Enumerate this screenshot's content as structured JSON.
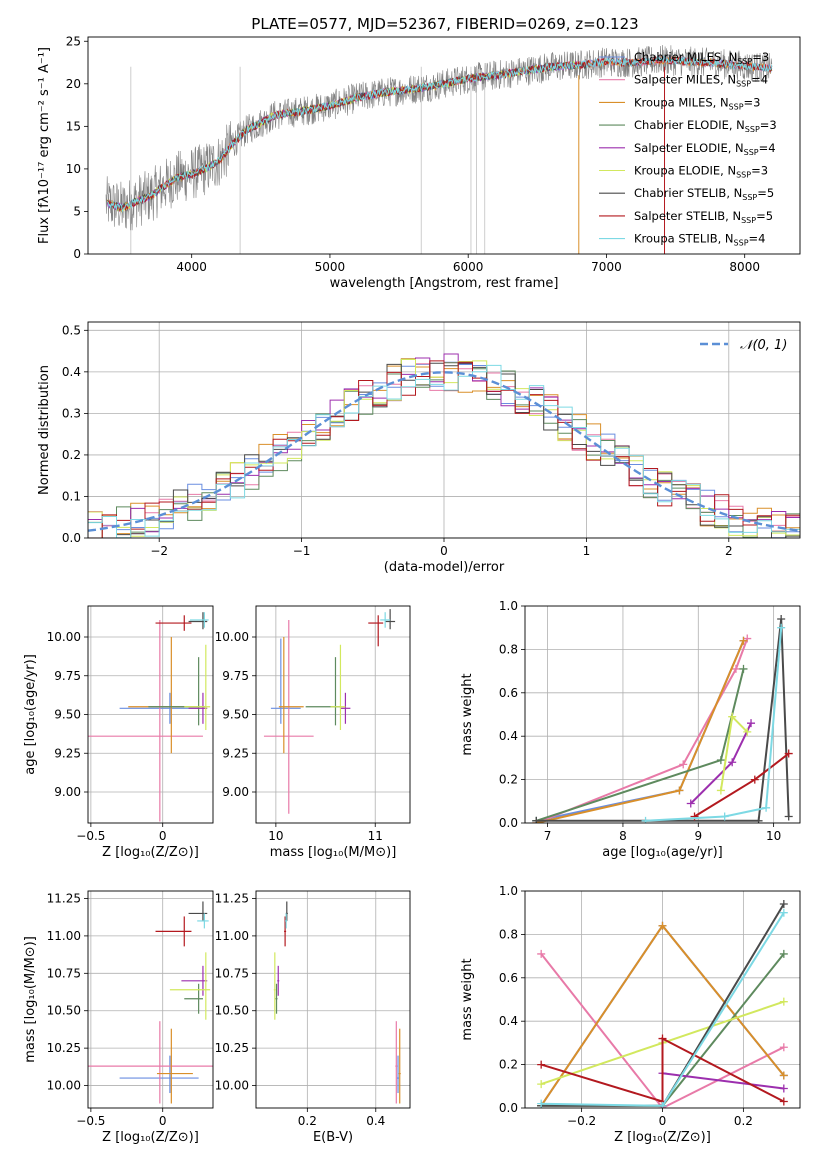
{
  "figure": {
    "title": "PLATE=0577, MJD=52367, FIBERID=0269, z=0.123"
  },
  "colors": {
    "Chabrier MILES": "#6a8ee0",
    "Salpeter MILES": "#e87aa8",
    "Kroupa MILES": "#d98f2a",
    "Chabrier ELODIE": "#5e8a5e",
    "Salpeter ELODIE": "#9c2fae",
    "Kroupa ELODIE": "#d2e85e",
    "Chabrier STELIB": "#4a4a4a",
    "Salpeter STELIB": "#b3191f",
    "Kroupa STELIB": "#7dd9e4",
    "data": "#808080",
    "normal": "#5b8fd6"
  },
  "legend_spectrum": [
    {
      "label": "Chabrier MILES, N",
      "sub": "SSP",
      "suffix": "=3",
      "key": "Chabrier MILES"
    },
    {
      "label": "Salpeter MILES, N",
      "sub": "SSP",
      "suffix": "=4",
      "key": "Salpeter MILES"
    },
    {
      "label": "Kroupa MILES, N",
      "sub": "SSP",
      "suffix": "=3",
      "key": "Kroupa MILES"
    },
    {
      "label": "Chabrier ELODIE, N",
      "sub": "SSP",
      "suffix": "=3",
      "key": "Chabrier ELODIE"
    },
    {
      "label": "Salpeter ELODIE, N",
      "sub": "SSP",
      "suffix": "=4",
      "key": "Salpeter ELODIE"
    },
    {
      "label": "Kroupa ELODIE, N",
      "sub": "SSP",
      "suffix": "=3",
      "key": "Kroupa ELODIE"
    },
    {
      "label": "Chabrier STELIB, N",
      "sub": "SSP",
      "suffix": "=5",
      "key": "Chabrier STELIB"
    },
    {
      "label": "Salpeter STELIB, N",
      "sub": "SSP",
      "suffix": "=5",
      "key": "Salpeter STELIB"
    },
    {
      "label": "Kroupa STELIB, N",
      "sub": "SSP",
      "suffix": "=4",
      "key": "Kroupa STELIB"
    }
  ],
  "chart_data": [
    {
      "id": "spectrum",
      "type": "line",
      "xlabel": "wavelength [Angstrom, rest frame]",
      "ylabel": "Flux [fλ10⁻¹⁷ erg cm⁻² s⁻¹ A⁻¹]",
      "xlim": [
        3250,
        8400
      ],
      "ylim": [
        0,
        25.5
      ],
      "xticks": [
        4000,
        5000,
        6000,
        7000,
        8000
      ],
      "yticks": [
        0,
        5,
        10,
        15,
        20,
        25
      ],
      "continuum": {
        "x": [
          3380,
          3500,
          3600,
          3700,
          3800,
          3900,
          4000,
          4100,
          4200,
          4300,
          4400,
          4500,
          4600,
          4800,
          5000,
          5200,
          5400,
          5600,
          5800,
          6000,
          6200,
          6400,
          6600,
          6800,
          7000,
          7200,
          7400,
          7600,
          7800,
          8000,
          8200
        ],
        "y": [
          6.0,
          5.4,
          6.2,
          6.8,
          8.0,
          9.0,
          9.4,
          10.0,
          11.0,
          13.0,
          14.6,
          15.4,
          16.3,
          16.8,
          17.4,
          18.4,
          19.0,
          19.4,
          19.9,
          20.6,
          21.0,
          21.5,
          22.0,
          22.2,
          22.6,
          22.5,
          22.8,
          22.6,
          22.4,
          22.1,
          21.8
        ]
      },
      "legend_position": "upper right"
    },
    {
      "id": "residuals",
      "type": "line",
      "xlabel": "(data-model)/error",
      "ylabel": "Normed distribution",
      "xlim": [
        -2.5,
        2.5
      ],
      "ylim": [
        0,
        0.52
      ],
      "xticks": [
        -2,
        -1,
        0,
        1,
        2
      ],
      "yticks": [
        0.0,
        0.1,
        0.2,
        0.3,
        0.4,
        0.5
      ],
      "normal_label": "𝒩(0, 1)",
      "legend_position": "upper right",
      "grid": true
    },
    {
      "id": "age_vs_Z",
      "type": "scatter",
      "xlabel": "Z [log₁₀(Z/Z⊙)]",
      "ylabel": "age  [log₁₀(age/yr)]",
      "xlim": [
        -0.52,
        0.35
      ],
      "ylim": [
        8.8,
        10.2
      ],
      "xticks": [
        -0.5,
        0.0
      ],
      "yticks": [
        9.0,
        9.25,
        9.5,
        9.75,
        10.0
      ],
      "points": [
        {
          "model": "Chabrier MILES",
          "x": 0.05,
          "y": 9.54,
          "xerr": [
            0.35,
            0.2
          ],
          "yerr": [
            0.1,
            0.1
          ]
        },
        {
          "model": "Salpeter MILES",
          "x": -0.02,
          "y": 9.36,
          "xerr": [
            0.5,
            0.3
          ],
          "yerr": [
            0.55,
            0.75
          ]
        },
        {
          "model": "Kroupa MILES",
          "x": 0.06,
          "y": 9.55,
          "xerr": [
            0.3,
            0.2
          ],
          "yerr": [
            0.3,
            0.45
          ]
        },
        {
          "model": "Chabrier ELODIE",
          "x": 0.25,
          "y": 9.55,
          "xerr": [
            0.35,
            0.05
          ],
          "yerr": [
            0.12,
            0.32
          ]
        },
        {
          "model": "Salpeter ELODIE",
          "x": 0.28,
          "y": 9.54,
          "xerr": [
            0.1,
            0.03
          ],
          "yerr": [
            0.1,
            0.1
          ]
        },
        {
          "model": "Kroupa ELODIE",
          "x": 0.3,
          "y": 9.55,
          "xerr": [
            0.15,
            0.03
          ],
          "yerr": [
            0.15,
            0.4
          ]
        },
        {
          "model": "Chabrier STELIB",
          "x": 0.28,
          "y": 10.1,
          "xerr": [
            0.1,
            0.03
          ],
          "yerr": [
            0.05,
            0.06
          ]
        },
        {
          "model": "Salpeter STELIB",
          "x": 0.15,
          "y": 10.09,
          "xerr": [
            0.2,
            0.05
          ],
          "yerr": [
            0.05,
            0.05
          ]
        },
        {
          "model": "Kroupa STELIB",
          "x": 0.29,
          "y": 10.11,
          "xerr": [
            0.1,
            0.03
          ],
          "yerr": [
            0.05,
            0.05
          ]
        }
      ]
    },
    {
      "id": "age_vs_mass",
      "type": "scatter",
      "xlabel": "mass [log₁₀(M/M⊙)]",
      "ylabel": "",
      "xlim": [
        9.8,
        11.35
      ],
      "ylim": [
        8.8,
        10.2
      ],
      "xticks": [
        10,
        11
      ],
      "yticks": [
        9.0,
        9.25,
        9.5,
        9.75,
        10.0
      ],
      "points": [
        {
          "model": "Chabrier MILES",
          "x": 10.05,
          "y": 9.54,
          "xerr": [
            0.1,
            0.2
          ],
          "yerr": [
            0.1,
            0.45
          ]
        },
        {
          "model": "Salpeter MILES",
          "x": 10.13,
          "y": 9.36,
          "xerr": [
            0.25,
            0.25
          ],
          "yerr": [
            0.5,
            0.75
          ]
        },
        {
          "model": "Kroupa MILES",
          "x": 10.08,
          "y": 9.55,
          "xerr": [
            0.05,
            0.2
          ],
          "yerr": [
            0.3,
            0.45
          ]
        },
        {
          "model": "Chabrier ELODIE",
          "x": 10.6,
          "y": 9.55,
          "xerr": [
            0.3,
            0.05
          ],
          "yerr": [
            0.12,
            0.32
          ]
        },
        {
          "model": "Salpeter ELODIE",
          "x": 10.7,
          "y": 9.54,
          "xerr": [
            0.05,
            0.05
          ],
          "yerr": [
            0.1,
            0.1
          ]
        },
        {
          "model": "Kroupa ELODIE",
          "x": 10.65,
          "y": 9.55,
          "xerr": [
            0.1,
            0.05
          ],
          "yerr": [
            0.15,
            0.4
          ]
        },
        {
          "model": "Chabrier STELIB",
          "x": 11.15,
          "y": 10.1,
          "xerr": [
            0.05,
            0.05
          ],
          "yerr": [
            0.05,
            0.08
          ]
        },
        {
          "model": "Salpeter STELIB",
          "x": 11.03,
          "y": 10.09,
          "xerr": [
            0.1,
            0.05
          ],
          "yerr": [
            0.15,
            0.05
          ]
        },
        {
          "model": "Kroupa STELIB",
          "x": 11.1,
          "y": 10.11,
          "xerr": [
            0.05,
            0.05
          ],
          "yerr": [
            0.05,
            0.05
          ]
        }
      ]
    },
    {
      "id": "mass_weight_vs_age",
      "type": "line",
      "xlabel": "age  [log₁₀(age/yr)]",
      "ylabel": "mass weight",
      "xlim": [
        6.7,
        10.35
      ],
      "ylim": [
        0,
        1.0
      ],
      "xticks": [
        7,
        8,
        9,
        10
      ],
      "yticks": [
        0.0,
        0.2,
        0.4,
        0.6,
        0.8,
        1.0
      ],
      "grid": true,
      "series": [
        {
          "model": "Chabrier MILES",
          "x": [
            6.85,
            8.75,
            9.6
          ],
          "y": [
            0.01,
            0.15,
            0.84
          ]
        },
        {
          "model": "Salpeter MILES",
          "x": [
            6.85,
            8.8,
            9.5,
            9.65
          ],
          "y": [
            0.0,
            0.27,
            0.71,
            0.85
          ]
        },
        {
          "model": "Kroupa MILES",
          "x": [
            6.85,
            8.75,
            9.6
          ],
          "y": [
            0.0,
            0.15,
            0.84
          ]
        },
        {
          "model": "Chabrier ELODIE",
          "x": [
            6.85,
            9.3,
            9.6
          ],
          "y": [
            0.01,
            0.29,
            0.71
          ]
        },
        {
          "model": "Salpeter ELODIE",
          "x": [
            8.9,
            9.45,
            9.7
          ],
          "y": [
            0.09,
            0.28,
            0.46
          ]
        },
        {
          "model": "Kroupa ELODIE",
          "x": [
            9.3,
            9.45,
            9.65
          ],
          "y": [
            0.15,
            0.49,
            0.42
          ]
        },
        {
          "model": "Chabrier STELIB",
          "x": [
            6.85,
            9.8,
            10.1,
            10.2
          ],
          "y": [
            0.01,
            0.01,
            0.94,
            0.03
          ]
        },
        {
          "model": "Salpeter STELIB",
          "x": [
            8.95,
            9.75,
            10.2
          ],
          "y": [
            0.03,
            0.2,
            0.32
          ]
        },
        {
          "model": "Kroupa STELIB",
          "x": [
            8.3,
            9.35,
            9.9,
            10.1
          ],
          "y": [
            0.01,
            0.03,
            0.07,
            0.9
          ]
        }
      ]
    },
    {
      "id": "mass_vs_Z",
      "type": "scatter",
      "xlabel": "Z [log₁₀(Z/Z⊙)]",
      "ylabel": "mass [log₁₀(M/M⊙)]",
      "xlim": [
        -0.52,
        0.35
      ],
      "ylim": [
        9.85,
        11.3
      ],
      "xticks": [
        -0.5,
        0.0
      ],
      "yticks": [
        10.0,
        10.25,
        10.5,
        10.75,
        11.0,
        11.25
      ],
      "points": [
        {
          "model": "Chabrier MILES",
          "x": 0.05,
          "y": 10.05,
          "xerr": [
            0.35,
            0.2
          ],
          "yerr": [
            0.1,
            0.15
          ]
        },
        {
          "model": "Salpeter MILES",
          "x": -0.02,
          "y": 10.13,
          "xerr": [
            0.5,
            0.37
          ],
          "yerr": [
            0.25,
            0.3
          ]
        },
        {
          "model": "Kroupa MILES",
          "x": 0.06,
          "y": 10.08,
          "xerr": [
            0.1,
            0.15
          ],
          "yerr": [
            0.2,
            0.3
          ]
        },
        {
          "model": "Chabrier ELODIE",
          "x": 0.25,
          "y": 10.58,
          "xerr": [
            0.1,
            0.03
          ],
          "yerr": [
            0.1,
            0.1
          ]
        },
        {
          "model": "Salpeter ELODIE",
          "x": 0.28,
          "y": 10.7,
          "xerr": [
            0.15,
            0.03
          ],
          "yerr": [
            0.1,
            0.1
          ]
        },
        {
          "model": "Kroupa ELODIE",
          "x": 0.3,
          "y": 10.64,
          "xerr": [
            0.25,
            0.03
          ],
          "yerr": [
            0.2,
            0.25
          ]
        },
        {
          "model": "Chabrier STELIB",
          "x": 0.28,
          "y": 11.15,
          "xerr": [
            0.1,
            0.03
          ],
          "yerr": [
            0.05,
            0.08
          ]
        },
        {
          "model": "Salpeter STELIB",
          "x": 0.15,
          "y": 11.03,
          "xerr": [
            0.2,
            0.05
          ],
          "yerr": [
            0.1,
            0.1
          ]
        },
        {
          "model": "Kroupa STELIB",
          "x": 0.29,
          "y": 11.1,
          "xerr": [
            0.05,
            0.03
          ],
          "yerr": [
            0.05,
            0.05
          ]
        }
      ]
    },
    {
      "id": "mass_vs_EBV",
      "type": "scatter",
      "xlabel": "E(B-V)",
      "ylabel": "",
      "xlim": [
        0.05,
        0.5
      ],
      "ylim": [
        9.85,
        11.3
      ],
      "xticks": [
        0.2,
        0.4
      ],
      "yticks": [
        10.0,
        10.25,
        10.5,
        10.75,
        11.0,
        11.25
      ],
      "points": [
        {
          "model": "Chabrier MILES",
          "x": 0.465,
          "y": 10.05,
          "xerr": [
            0.003,
            0.003
          ],
          "yerr": [
            0.1,
            0.15
          ]
        },
        {
          "model": "Salpeter MILES",
          "x": 0.46,
          "y": 10.13,
          "xerr": [
            0.003,
            0.003
          ],
          "yerr": [
            0.25,
            0.3
          ]
        },
        {
          "model": "Kroupa MILES",
          "x": 0.47,
          "y": 10.08,
          "xerr": [
            0.003,
            0.003
          ],
          "yerr": [
            0.2,
            0.3
          ]
        },
        {
          "model": "Chabrier ELODIE",
          "x": 0.11,
          "y": 10.58,
          "xerr": [
            0.003,
            0.003
          ],
          "yerr": [
            0.1,
            0.1
          ]
        },
        {
          "model": "Salpeter ELODIE",
          "x": 0.115,
          "y": 10.7,
          "xerr": [
            0.003,
            0.003
          ],
          "yerr": [
            0.1,
            0.1
          ]
        },
        {
          "model": "Kroupa ELODIE",
          "x": 0.105,
          "y": 10.64,
          "xerr": [
            0.003,
            0.003
          ],
          "yerr": [
            0.2,
            0.25
          ]
        },
        {
          "model": "Chabrier STELIB",
          "x": 0.14,
          "y": 11.15,
          "xerr": [
            0.003,
            0.003
          ],
          "yerr": [
            0.05,
            0.08
          ]
        },
        {
          "model": "Salpeter STELIB",
          "x": 0.135,
          "y": 11.03,
          "xerr": [
            0.003,
            0.003
          ],
          "yerr": [
            0.1,
            0.1
          ]
        },
        {
          "model": "Kroupa STELIB",
          "x": 0.138,
          "y": 11.1,
          "xerr": [
            0.003,
            0.003
          ],
          "yerr": [
            0.05,
            0.05
          ]
        }
      ]
    },
    {
      "id": "mass_weight_vs_Z",
      "type": "line",
      "xlabel": "Z [log₁₀(Z/Z⊙)]",
      "ylabel": "mass weight",
      "xlim": [
        -0.34,
        0.34
      ],
      "ylim": [
        0,
        1.0
      ],
      "xticks": [
        -0.2,
        0.0,
        0.2
      ],
      "yticks": [
        0.0,
        0.2,
        0.4,
        0.6,
        0.8,
        1.0
      ],
      "grid": true,
      "series": [
        {
          "model": "Chabrier MILES",
          "x": [
            -0.3,
            0.0,
            0.3
          ],
          "y": [
            0.01,
            0.84,
            0.15
          ]
        },
        {
          "model": "Salpeter MILES",
          "x": [
            -0.3,
            0.0,
            0.3
          ],
          "y": [
            0.71,
            0.0,
            0.28
          ]
        },
        {
          "model": "Kroupa MILES",
          "x": [
            -0.3,
            0.0,
            0.3
          ],
          "y": [
            0.01,
            0.84,
            0.15
          ]
        },
        {
          "model": "Chabrier ELODIE",
          "x": [
            -0.3,
            0.0,
            0.3
          ],
          "y": [
            0.01,
            0.01,
            0.71
          ]
        },
        {
          "model": "Salpeter ELODIE",
          "x": [
            0.0,
            0.3
          ],
          "y": [
            0.16,
            0.09
          ]
        },
        {
          "model": "Kroupa ELODIE",
          "x": [
            -0.3,
            0.0,
            0.3
          ],
          "y": [
            0.11,
            0.3,
            0.49
          ]
        },
        {
          "model": "Chabrier STELIB",
          "x": [
            -0.3,
            0.0,
            0.3
          ],
          "y": [
            0.01,
            0.01,
            0.94
          ]
        },
        {
          "model": "Salpeter STELIB",
          "x": [
            -0.3,
            0.0,
            0.0,
            0.3
          ],
          "y": [
            0.2,
            0.03,
            0.32,
            0.03
          ]
        },
        {
          "model": "Kroupa STELIB",
          "x": [
            -0.3,
            0.0,
            0.3
          ],
          "y": [
            0.02,
            0.01,
            0.9
          ]
        }
      ]
    }
  ]
}
